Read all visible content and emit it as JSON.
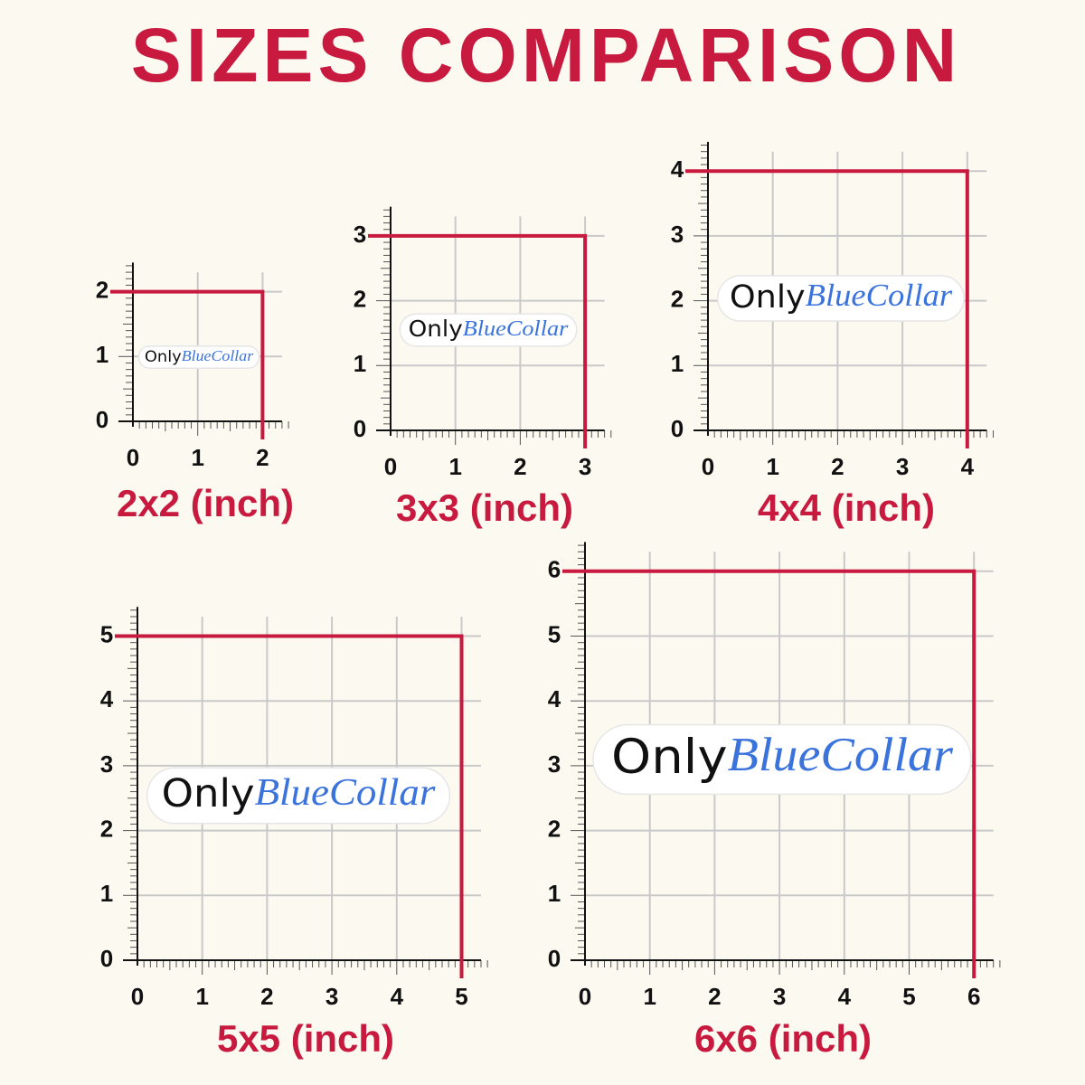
{
  "title": "SIZES COMPARISON",
  "sticker": {
    "word1": "Only",
    "word2": "BlueCollar"
  },
  "panels": [
    {
      "label": "2x2 (inch)",
      "ticks": [
        0,
        1,
        2
      ]
    },
    {
      "label": "3x3 (inch)",
      "ticks": [
        0,
        1,
        2,
        3
      ]
    },
    {
      "label": "4x4 (inch)",
      "ticks": [
        0,
        1,
        2,
        3,
        4
      ]
    },
    {
      "label": "5x5 (inch)",
      "ticks": [
        0,
        1,
        2,
        3,
        4,
        5
      ]
    },
    {
      "label": "6x6 (inch)",
      "ticks": [
        0,
        1,
        2,
        3,
        4,
        5,
        6
      ]
    }
  ]
}
